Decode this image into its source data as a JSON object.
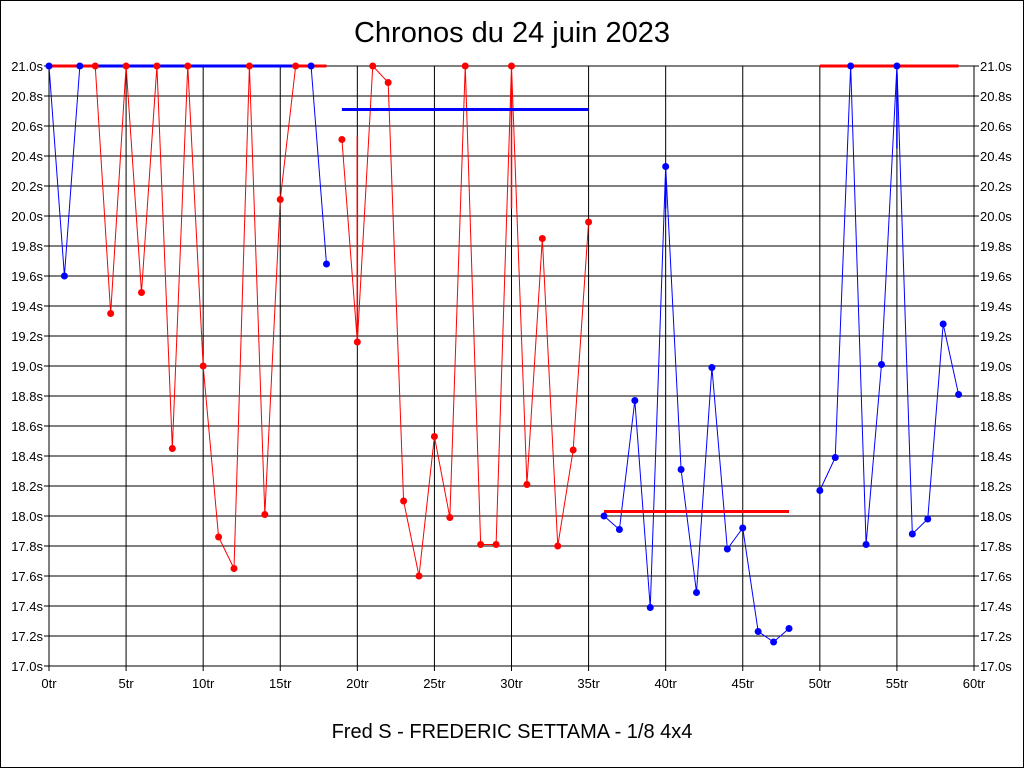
{
  "chart_data": {
    "type": "line",
    "title": "Chronos du 24 juin 2023",
    "footer": "Fred S - FREDERIC SETTAMA - 1/8 4x4",
    "xlim": [
      0,
      60
    ],
    "ylim": [
      17.0,
      21.0
    ],
    "x_ticks": [
      {
        "value": 0,
        "label": "0tr"
      },
      {
        "value": 5,
        "label": "5tr"
      },
      {
        "value": 10,
        "label": "10tr"
      },
      {
        "value": 15,
        "label": "15tr"
      },
      {
        "value": 20,
        "label": "20tr"
      },
      {
        "value": 25,
        "label": "25tr"
      },
      {
        "value": 30,
        "label": "30tr"
      },
      {
        "value": 35,
        "label": "35tr"
      },
      {
        "value": 40,
        "label": "40tr"
      },
      {
        "value": 45,
        "label": "45tr"
      },
      {
        "value": 50,
        "label": "50tr"
      },
      {
        "value": 55,
        "label": "55tr"
      },
      {
        "value": 60,
        "label": "60tr"
      }
    ],
    "y_ticks": [
      {
        "value": 21.0,
        "label": "21.0s"
      },
      {
        "value": 20.8,
        "label": "20.8s"
      },
      {
        "value": 20.6,
        "label": "20.6s"
      },
      {
        "value": 20.4,
        "label": "20.4s"
      },
      {
        "value": 20.2,
        "label": "20.2s"
      },
      {
        "value": 20.0,
        "label": "20.0s"
      },
      {
        "value": 19.8,
        "label": "19.8s"
      },
      {
        "value": 19.6,
        "label": "19.6s"
      },
      {
        "value": 19.4,
        "label": "19.4s"
      },
      {
        "value": 19.2,
        "label": "19.2s"
      },
      {
        "value": 19.0,
        "label": "19.0s"
      },
      {
        "value": 18.8,
        "label": "18.8s"
      },
      {
        "value": 18.6,
        "label": "18.6s"
      },
      {
        "value": 18.4,
        "label": "18.4s"
      },
      {
        "value": 18.2,
        "label": "18.2s"
      },
      {
        "value": 18.0,
        "label": "18.0s"
      },
      {
        "value": 17.8,
        "label": "17.8s"
      },
      {
        "value": 17.6,
        "label": "17.6s"
      },
      {
        "value": 17.4,
        "label": "17.4s"
      },
      {
        "value": 17.2,
        "label": "17.2s"
      },
      {
        "value": 17.0,
        "label": "17.0s"
      }
    ],
    "grid": true,
    "segments": [
      {
        "color": "#0000ff",
        "x": [
          0,
          1,
          2
        ],
        "y": [
          21.0,
          19.6,
          21.0
        ]
      },
      {
        "color": "#ff0000",
        "x": [
          3,
          4,
          5,
          6,
          7,
          8,
          9,
          10,
          11,
          12,
          13,
          14,
          15,
          16
        ],
        "y": [
          21.0,
          19.35,
          21.0,
          19.49,
          21.0,
          18.45,
          21.0,
          19.0,
          17.86,
          17.65,
          21.0,
          18.01,
          20.11,
          21.0
        ]
      },
      {
        "color": "#0000ff",
        "x": [
          17,
          18
        ],
        "y": [
          21.0,
          19.68
        ]
      },
      {
        "color": "#ff0000",
        "x": [
          19,
          20,
          21,
          22,
          23,
          24,
          25,
          26,
          27,
          28,
          29,
          30,
          31,
          32,
          33,
          34,
          35
        ],
        "y": [
          20.51,
          19.16,
          21.0,
          20.89,
          18.1,
          17.6,
          18.53,
          17.99,
          21.0,
          17.81,
          17.81,
          21.0,
          18.21,
          19.85,
          17.8,
          18.44,
          19.96
        ]
      },
      {
        "color": "#0000ff",
        "x": [
          36,
          37,
          38,
          39,
          40,
          41,
          42,
          43,
          44,
          45,
          46,
          47,
          48
        ],
        "y": [
          18.0,
          17.91,
          18.77,
          17.39,
          20.33,
          18.31,
          17.49,
          18.99,
          17.78,
          17.92,
          17.23,
          17.16,
          17.25
        ]
      },
      {
        "color": "#0000ff",
        "x": [
          50,
          51,
          52,
          53,
          54,
          55,
          56,
          57,
          58,
          59
        ],
        "y": [
          18.17,
          18.39,
          21.0,
          17.81,
          19.01,
          21.0,
          17.88,
          17.98,
          19.28,
          18.81
        ]
      }
    ],
    "spikes": [
      {
        "color": "#ff0000",
        "x": 20,
        "y": [
          20.53,
          19.15
        ]
      },
      {
        "color": "#ff0000",
        "x": 30,
        "y": [
          20.92,
          20.05
        ]
      },
      {
        "color": "#0000ff",
        "x": 40,
        "y": [
          20.25,
          20.05
        ]
      },
      {
        "color": "#0000ff",
        "x": 55,
        "y": [
          20.95,
          20.45
        ]
      }
    ],
    "reference_lines": [
      {
        "color": "#ff0000",
        "x": [
          0,
          18
        ],
        "y": 21.0
      },
      {
        "color": "#0000ff",
        "x": [
          3,
          16
        ],
        "y": 21.0
      },
      {
        "color": "#0000ff",
        "x": [
          19,
          35
        ],
        "y": 20.71
      },
      {
        "color": "#ff0000",
        "x": [
          36,
          48
        ],
        "y": 18.03
      },
      {
        "color": "#ff0000",
        "x": [
          50,
          59
        ],
        "y": 21.0
      }
    ]
  }
}
